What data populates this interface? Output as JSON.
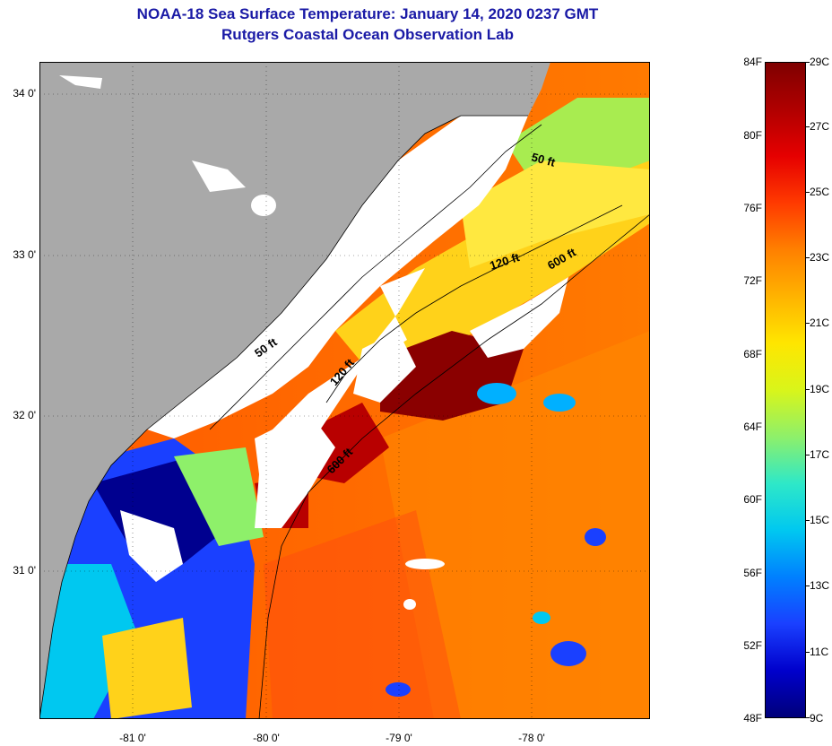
{
  "title": {
    "line1": "NOAA-18 Sea Surface Temperature:  January 14, 2020 0237 GMT",
    "line2": "Rutgers Coastal Ocean Observation Lab"
  },
  "map": {
    "lat_labels": [
      "34 0'",
      "33 0'",
      "32 0'",
      "31 0'"
    ],
    "lon_labels": [
      "-81 0'",
      "-80 0'",
      "-79 0'",
      "-78 0'"
    ],
    "isobath_labels": [
      "50 ft",
      "120 ft",
      "600 ft",
      "50 ft",
      "120 ft",
      "600 ft"
    ],
    "colors": {
      "land": "#a9a9a9",
      "cloud": "#ffffff",
      "frame": "#000000"
    }
  },
  "colorbar": {
    "fahrenheit": [
      "84F",
      "80F",
      "76F",
      "72F",
      "68F",
      "64F",
      "60F",
      "56F",
      "52F",
      "48F"
    ],
    "celsius": [
      "29C",
      "27C",
      "25C",
      "23C",
      "21C",
      "19C",
      "17C",
      "15C",
      "13C",
      "11C",
      "9C"
    ],
    "gradient": [
      "#7f0000",
      "#b00000",
      "#e60000",
      "#ff3a00",
      "#ff8000",
      "#ffb300",
      "#ffe600",
      "#d9f51a",
      "#8ef06a",
      "#2ee8c8",
      "#00c8f0",
      "#0080ff",
      "#1a40ff",
      "#0000cc",
      "#00007a"
    ]
  }
}
